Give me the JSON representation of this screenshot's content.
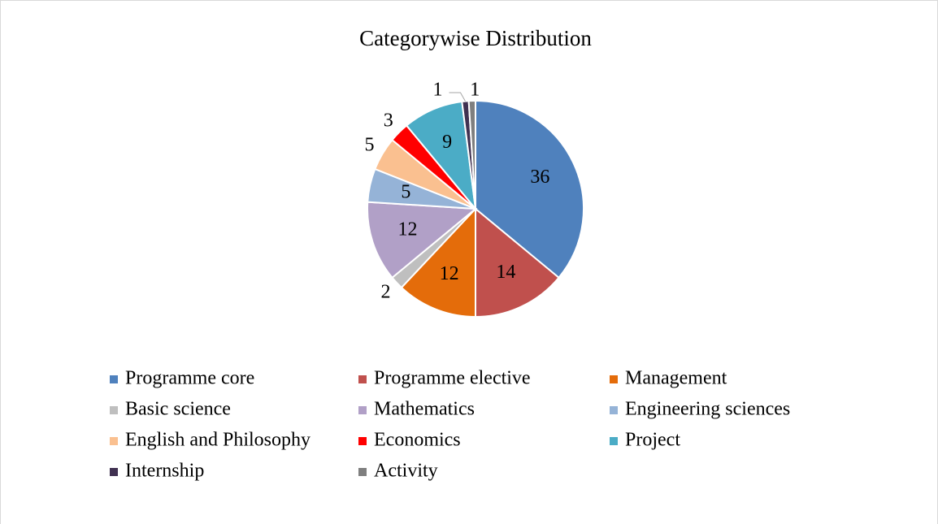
{
  "chart_data": {
    "type": "pie",
    "title": "Categorywise Distribution",
    "categories": [
      "Programme core",
      "Programme elective",
      "Management",
      "Basic science",
      "Mathematics",
      "Engineering sciences",
      "English and Philosophy",
      "Economics",
      "Project",
      "Internship",
      "Activity"
    ],
    "values": [
      36,
      14,
      12,
      2,
      12,
      5,
      5,
      3,
      9,
      1,
      1
    ],
    "colors": [
      "#4f81bd",
      "#c0504d",
      "#e46c0a",
      "#bfbfbf",
      "#b1a0c7",
      "#95b3d7",
      "#fac090",
      "#ff0000",
      "#4bacc6",
      "#403151",
      "#7f7f7f"
    ],
    "legend": "bottom"
  }
}
